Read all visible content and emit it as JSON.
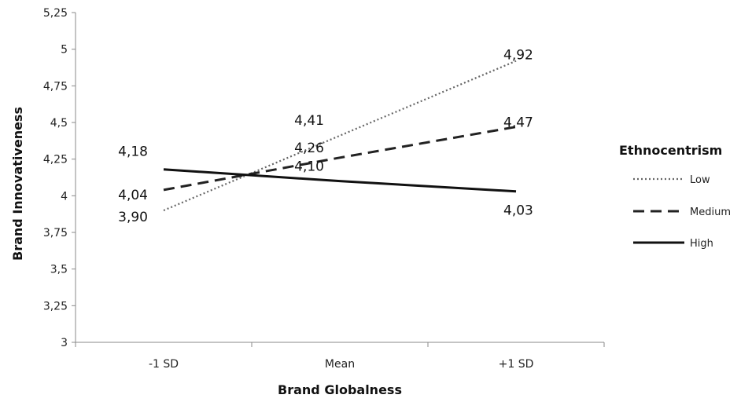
{
  "chart_data": {
    "type": "line",
    "xlabel": "Brand Globalness",
    "ylabel": "Brand Innovativeness",
    "categories": [
      "-1 SD",
      "Mean",
      "+1 SD"
    ],
    "ylim": [
      3,
      5.25
    ],
    "yticks": [
      3,
      3.25,
      3.5,
      3.75,
      4,
      4.25,
      4.5,
      4.75,
      5,
      5.25
    ],
    "ytick_labels": [
      "3",
      "3,25",
      "3,5",
      "3,75",
      "4",
      "4,25",
      "4,5",
      "4,75",
      "5",
      "5,25"
    ],
    "grid": false,
    "legend": {
      "title": "Ethnocentrism",
      "position": "right"
    },
    "series": [
      {
        "name": "Low",
        "style": "dotted",
        "values": [
          3.9,
          4.41,
          4.92
        ],
        "labels": [
          "3,90",
          "4,41",
          "4,92"
        ]
      },
      {
        "name": "Medium",
        "style": "dashed",
        "values": [
          4.04,
          4.26,
          4.47
        ],
        "labels": [
          "4,04",
          "4,26",
          "4,47"
        ]
      },
      {
        "name": "High",
        "style": "solid",
        "values": [
          4.18,
          4.1,
          4.03
        ],
        "labels": [
          "4,18",
          "4,10",
          "4,03"
        ]
      }
    ],
    "colors": {
      "low": "#666666",
      "medium": "#222222",
      "high": "#111111",
      "axis": "#888888"
    }
  }
}
